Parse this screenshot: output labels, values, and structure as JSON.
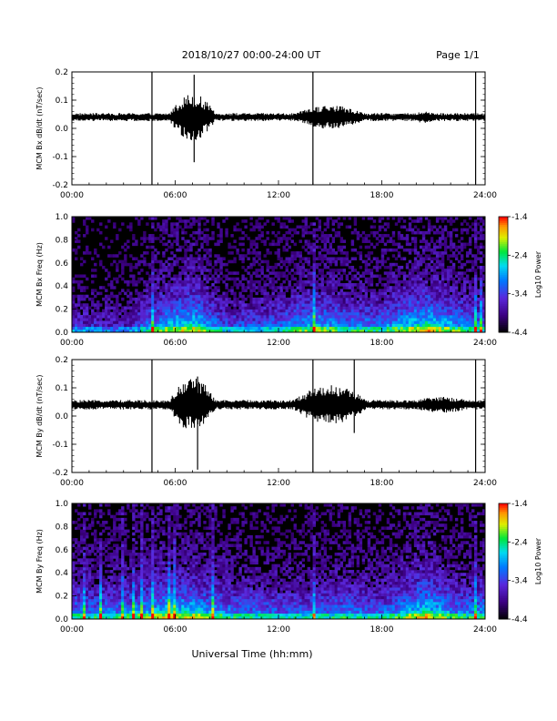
{
  "header": {
    "title": "2018/10/27   00:00-24:00 UT",
    "page": "Page 1/1"
  },
  "footer": {
    "xlabel": "Universal Time (hh:mm)"
  },
  "time_ticks": [
    "00:00",
    "06:00",
    "12:00",
    "18:00",
    "24:00"
  ],
  "chart_data": [
    {
      "type": "line",
      "name": "bx-timeseries",
      "ylabel": "MCM Bx dB/dt (nT/sec)",
      "xlim": [
        0,
        24
      ],
      "ylim": [
        -0.2,
        0.2
      ],
      "yticks": [
        "0.2",
        "0.1",
        "0.0",
        "-0.1",
        "-0.2"
      ],
      "baseline": 0.04,
      "noise_amplitude": 0.01,
      "active_intervals": [
        {
          "start": 5.5,
          "end": 8.5,
          "amplitude": 0.06
        },
        {
          "start": 12.5,
          "end": 17.5,
          "amplitude": 0.03
        },
        {
          "start": 19.5,
          "end": 21.5,
          "amplitude": 0.015
        }
      ],
      "spikes": [
        {
          "t": 4.65,
          "min": -0.2,
          "max": 0.2
        },
        {
          "t": 7.1,
          "min": -0.12,
          "max": 0.19
        },
        {
          "t": 14.0,
          "min": -0.2,
          "max": 0.2
        },
        {
          "t": 23.45,
          "min": -0.2,
          "max": 0.2
        }
      ]
    },
    {
      "type": "heatmap",
      "name": "bx-spectrogram",
      "ylabel": "MCM Bx Freq (Hz)",
      "xlim": [
        0,
        24
      ],
      "ylim": [
        0,
        1.0
      ],
      "yticks": [
        "1.0",
        "0.8",
        "0.6",
        "0.4",
        "0.2",
        "0.0"
      ],
      "colorbar": {
        "label": "Log10 Power",
        "range": [
          -4.4,
          -1.4
        ],
        "ticks": [
          "-1.4",
          "-2.4",
          "-3.4",
          "-4.4"
        ]
      },
      "activity": [
        {
          "t": 0,
          "level": 0.3
        },
        {
          "t": 3,
          "level": 0.25
        },
        {
          "t": 5.5,
          "level": 0.55
        },
        {
          "t": 7,
          "level": 0.65
        },
        {
          "t": 9,
          "level": 0.35
        },
        {
          "t": 12,
          "level": 0.4
        },
        {
          "t": 14,
          "level": 0.55
        },
        {
          "t": 16,
          "level": 0.45
        },
        {
          "t": 18,
          "level": 0.45
        },
        {
          "t": 20.5,
          "level": 0.65
        },
        {
          "t": 22.5,
          "level": 0.5
        },
        {
          "t": 24,
          "level": 0.4
        }
      ],
      "streaks_t": [
        4.65,
        14.0,
        23.45,
        23.7
      ]
    },
    {
      "type": "line",
      "name": "by-timeseries",
      "ylabel": "MCM By dB/dt (nT/sec)",
      "xlim": [
        0,
        24
      ],
      "ylim": [
        -0.2,
        0.2
      ],
      "yticks": [
        "0.2",
        "0.1",
        "0.0",
        "-0.1",
        "-0.2"
      ],
      "baseline": 0.04,
      "noise_amplitude": 0.012,
      "active_intervals": [
        {
          "start": 5.5,
          "end": 8.5,
          "amplitude": 0.07
        },
        {
          "start": 12.5,
          "end": 17.5,
          "amplitude": 0.05
        },
        {
          "start": 19.0,
          "end": 24.0,
          "amplitude": 0.02
        }
      ],
      "spikes": [
        {
          "t": 4.65,
          "min": -0.2,
          "max": 0.2
        },
        {
          "t": 7.3,
          "min": -0.19,
          "max": 0.14
        },
        {
          "t": 14.0,
          "min": -0.2,
          "max": 0.2
        },
        {
          "t": 16.4,
          "min": -0.06,
          "max": 0.2
        },
        {
          "t": 23.45,
          "min": -0.2,
          "max": 0.2
        }
      ]
    },
    {
      "type": "heatmap",
      "name": "by-spectrogram",
      "ylabel": "MCM By Freq (Hz)",
      "xlim": [
        0,
        24
      ],
      "ylim": [
        0,
        1.0
      ],
      "yticks": [
        "1.0",
        "0.8",
        "0.6",
        "0.4",
        "0.2",
        "0.0"
      ],
      "colorbar": {
        "label": "Log10 Power",
        "range": [
          -4.4,
          -1.4
        ],
        "ticks": [
          "-1.4",
          "-2.4",
          "-3.4",
          "-4.4"
        ]
      },
      "activity": [
        {
          "t": 0,
          "level": 0.45
        },
        {
          "t": 3,
          "level": 0.45
        },
        {
          "t": 5.5,
          "level": 0.6
        },
        {
          "t": 7,
          "level": 0.6
        },
        {
          "t": 9,
          "level": 0.45
        },
        {
          "t": 12,
          "level": 0.4
        },
        {
          "t": 14,
          "level": 0.4
        },
        {
          "t": 16,
          "level": 0.45
        },
        {
          "t": 18,
          "level": 0.4
        },
        {
          "t": 20.5,
          "level": 0.65
        },
        {
          "t": 22.5,
          "level": 0.45
        },
        {
          "t": 24,
          "level": 0.5
        }
      ],
      "streaks_t": [
        0.7,
        1.6,
        3.0,
        3.6,
        4.1,
        4.65,
        5.7,
        6.0,
        8.2,
        14.0,
        23.45
      ]
    }
  ]
}
